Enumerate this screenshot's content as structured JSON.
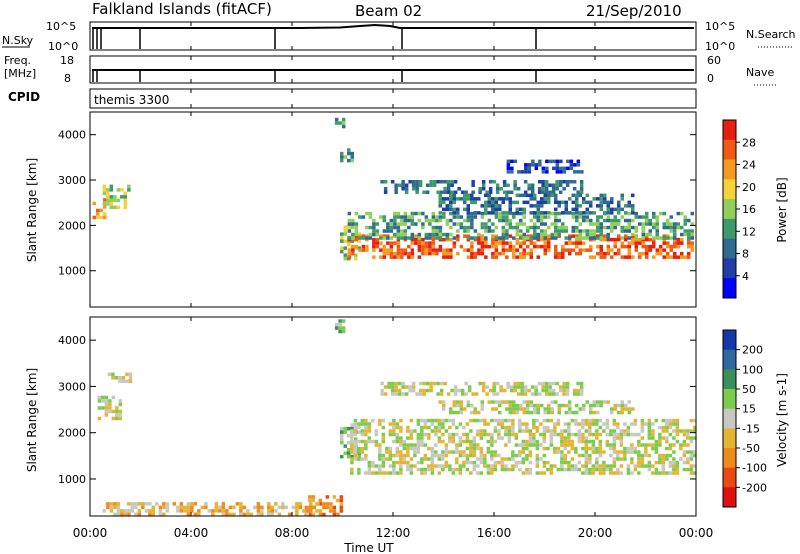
{
  "header": {
    "station": "Falkland Islands (fitACF)",
    "beam": "Beam 02",
    "date": "21/Sep/2010"
  },
  "nsky_panel": {
    "left_label": "N.Sky",
    "left_ticks": [
      "10^5",
      "10^0"
    ],
    "right_label": "N.Search",
    "right_ticks": [
      "10^5",
      "10^0"
    ]
  },
  "freq_panel": {
    "left_label_1": "Freq.",
    "left_label_2": "[MHz]",
    "left_ticks": [
      "18",
      "8"
    ],
    "right_label": "Nave",
    "right_ticks": [
      "60",
      "0"
    ]
  },
  "cpid_panel": {
    "label": "CPID",
    "program": "themis 3300"
  },
  "colors": {
    "power": [
      "#0000ff",
      "#1f3fa6",
      "#2e6b8e",
      "#3e9a6a",
      "#8fcf5a",
      "#f3d23a",
      "#f59a1e",
      "#f05a14",
      "#e81f0f"
    ],
    "velocity": [
      "#1537a8",
      "#2f67a0",
      "#3b8f5f",
      "#7ccc4c",
      "#c8c8c0",
      "#e3b534",
      "#f08a1c",
      "#ea4a12",
      "#e0100c"
    ]
  },
  "x_ticks": [
    "00:00",
    "04:00",
    "08:00",
    "12:00",
    "16:00",
    "20:00",
    "00:00"
  ],
  "chart_data": [
    {
      "type": "heatmap",
      "name": "Power",
      "xlabel": "Time UT",
      "ylabel": "Slant Range [km]",
      "xlim": [
        0,
        24
      ],
      "ylim": [
        200,
        4500
      ],
      "y_ticks": [
        1000,
        2000,
        3000,
        4000
      ],
      "colorbar_label": "Power [dB]",
      "colorbar_ticks": [
        4,
        8,
        12,
        16,
        20,
        24,
        28
      ],
      "colorbar_range": [
        0,
        32
      ],
      "regions": [
        {
          "t": [
            0.1,
            0.6
          ],
          "r": [
            2200,
            2600
          ],
          "level": 6
        },
        {
          "t": [
            0.5,
            1.5
          ],
          "r": [
            2400,
            2900
          ],
          "level": 4
        },
        {
          "t": [
            9.7,
            10.1
          ],
          "r": [
            4150,
            4450
          ],
          "level": 3
        },
        {
          "t": [
            9.9,
            10.4
          ],
          "r": [
            3400,
            3700
          ],
          "level": 3
        },
        {
          "t": [
            9.9,
            10.6
          ],
          "r": [
            1300,
            2000
          ],
          "level": 4
        },
        {
          "t": [
            10.2,
            23.9
          ],
          "r": [
            1300,
            1800
          ],
          "level": 7
        },
        {
          "t": [
            10.2,
            23.9
          ],
          "r": [
            1700,
            2300
          ],
          "level": 3
        },
        {
          "t": [
            11.5,
            19.5
          ],
          "r": [
            2700,
            3000
          ],
          "level": 2
        },
        {
          "t": [
            13.8,
            21.5
          ],
          "r": [
            2300,
            2700
          ],
          "level": 2
        },
        {
          "t": [
            16.5,
            19.5
          ],
          "r": [
            3200,
            3450
          ],
          "level": 1
        }
      ]
    },
    {
      "type": "heatmap",
      "name": "Velocity",
      "xlabel": "Time UT",
      "ylabel": "Slant Range [km]",
      "xlim": [
        0,
        24
      ],
      "ylim": [
        200,
        4500
      ],
      "y_ticks": [
        1000,
        2000,
        3000,
        4000
      ],
      "colorbar_label": "Velocity [m s-1]",
      "colorbar_ticks": [
        200,
        100,
        50,
        15,
        -15,
        -50,
        -100,
        -200
      ],
      "colorbar_range": [
        -250,
        250
      ],
      "regions": [
        {
          "t": [
            0.3,
            1.2
          ],
          "r": [
            2300,
            2800
          ],
          "level": 4
        },
        {
          "t": [
            0.7,
            1.6
          ],
          "r": [
            3100,
            3300
          ],
          "level": 4
        },
        {
          "t": [
            9.7,
            10.1
          ],
          "r": [
            4150,
            4450
          ],
          "level": 3
        },
        {
          "t": [
            9.9,
            10.6
          ],
          "r": [
            1500,
            2200
          ],
          "level": 3
        },
        {
          "t": [
            10.3,
            23.9
          ],
          "r": [
            1100,
            2300
          ],
          "level": 4
        },
        {
          "t": [
            11.5,
            19.5
          ],
          "r": [
            2800,
            3100
          ],
          "level": 4
        },
        {
          "t": [
            13.8,
            21.5
          ],
          "r": [
            2400,
            2700
          ],
          "level": 4
        },
        {
          "t": [
            8.5,
            10.0
          ],
          "r": [
            250,
            650
          ],
          "level": 6
        },
        {
          "t": [
            0.5,
            9.0
          ],
          "r": [
            250,
            500
          ],
          "level": 5
        }
      ]
    }
  ]
}
